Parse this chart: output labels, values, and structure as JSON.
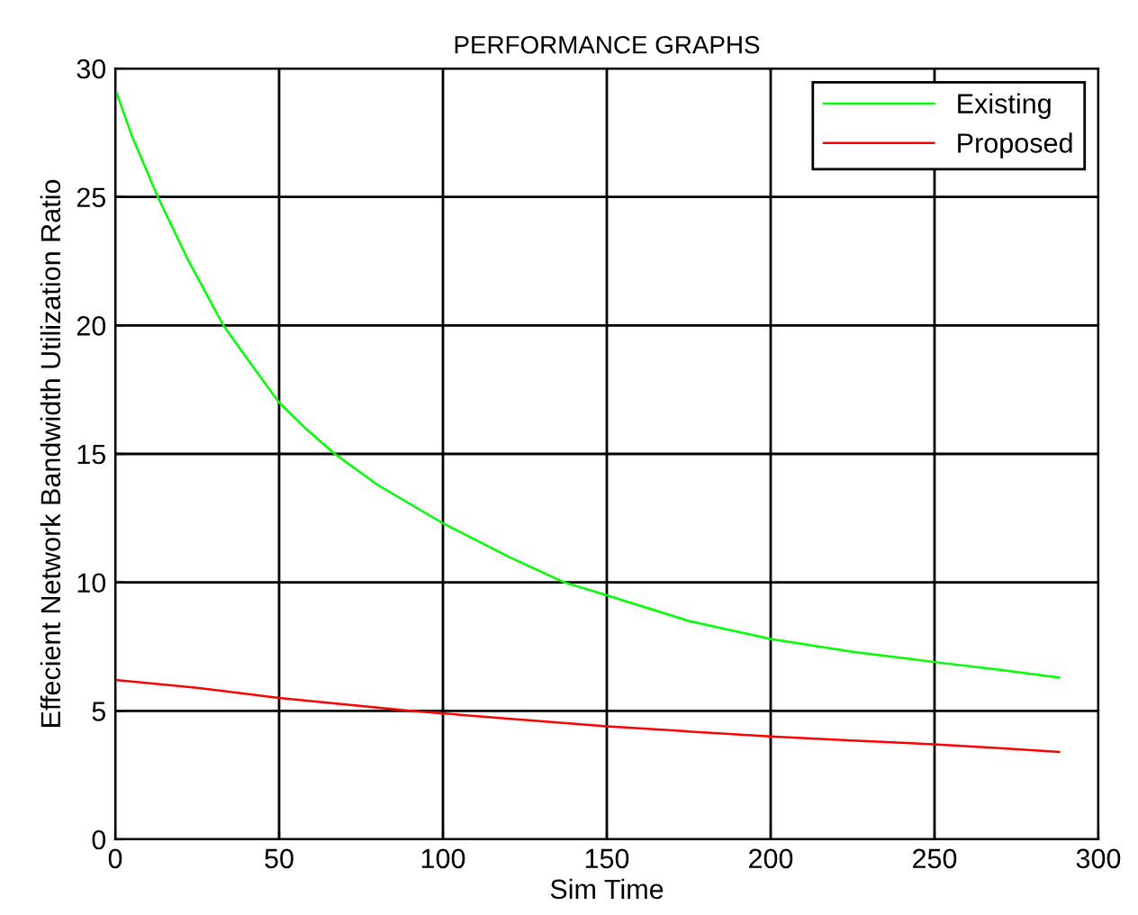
{
  "chart_data": {
    "type": "line",
    "title": "PERFORMANCE GRAPHS",
    "xlabel": "Sim Time",
    "ylabel": "Effecient Network Bandwidth Utilization Ratio",
    "xlim": [
      0,
      300
    ],
    "ylim": [
      0,
      30
    ],
    "xticks": [
      0,
      50,
      100,
      150,
      200,
      250,
      300
    ],
    "yticks": [
      0,
      5,
      10,
      15,
      20,
      25,
      30
    ],
    "grid": true,
    "legend": "top right",
    "series": [
      {
        "name": "Existing",
        "color": "#00ff00",
        "x": [
          0,
          5,
          13,
          22,
          33,
          42,
          50,
          58,
          67,
          80,
          100,
          120,
          137,
          150,
          175,
          200,
          225,
          250,
          270,
          288
        ],
        "values": [
          29.2,
          27.4,
          25.0,
          22.6,
          20.0,
          18.4,
          17.0,
          16.0,
          15.0,
          13.8,
          12.3,
          11.0,
          10.0,
          9.5,
          8.5,
          7.8,
          7.3,
          6.9,
          6.6,
          6.3
        ]
      },
      {
        "name": "Proposed",
        "color": "#ff0000",
        "x": [
          0,
          25,
          50,
          90,
          120,
          150,
          175,
          200,
          225,
          250,
          270,
          288
        ],
        "values": [
          6.2,
          5.9,
          5.5,
          5.0,
          4.7,
          4.4,
          4.2,
          4.0,
          3.85,
          3.7,
          3.55,
          3.4
        ]
      }
    ]
  }
}
